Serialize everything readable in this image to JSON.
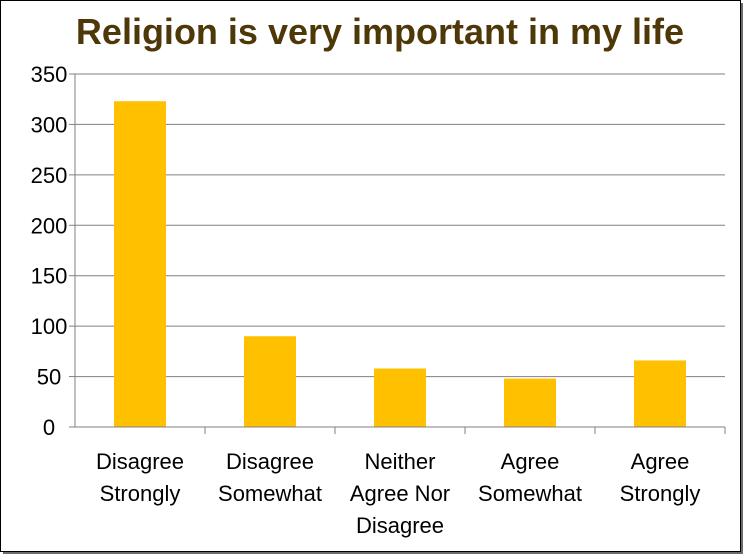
{
  "chart_data": {
    "type": "bar",
    "title": "Religion is very important in my life",
    "categories": [
      [
        "Disagree",
        "Strongly"
      ],
      [
        "Disagree",
        "Somewhat"
      ],
      [
        "Neither",
        "Agree Nor",
        "Disagree"
      ],
      [
        "Agree",
        "Somewhat"
      ],
      [
        "Agree",
        "Strongly"
      ]
    ],
    "values": [
      323,
      90,
      58,
      48,
      66
    ],
    "ylim": [
      0,
      350
    ],
    "yticks": [
      "0",
      "50",
      "100",
      "150",
      "200",
      "250",
      "300",
      "350"
    ],
    "ytick_values": [
      0,
      50,
      100,
      150,
      200,
      250,
      300,
      350
    ],
    "grid": true,
    "legend": "none",
    "colors": {
      "bar": "#FFC000",
      "title": "#4F3808",
      "grid": "#808080",
      "axis": "#808080"
    }
  }
}
